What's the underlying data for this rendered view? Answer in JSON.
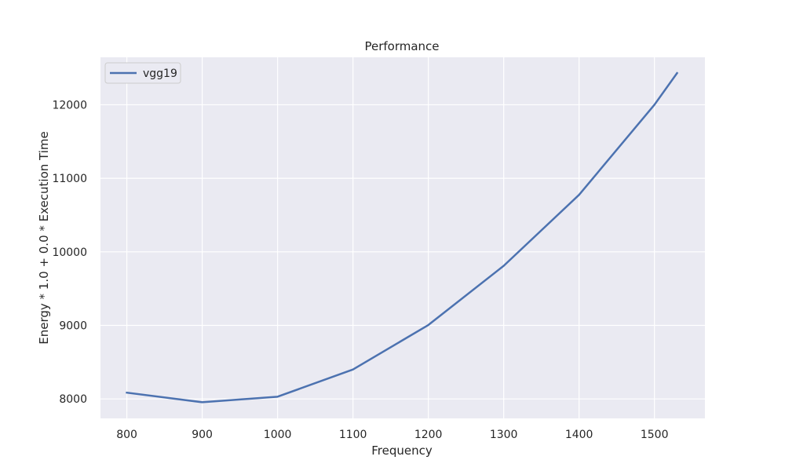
{
  "chart_data": {
    "type": "line",
    "title": "Performance",
    "xlabel": "Frequency",
    "ylabel": "Energy * 1.0 + 0.0 * Execution Time",
    "x": [
      800,
      900,
      1000,
      1100,
      1200,
      1300,
      1400,
      1500,
      1530
    ],
    "series": [
      {
        "name": "vgg19",
        "values": [
          8085,
          7955,
          8030,
          8400,
          9005,
          9810,
          10775,
          12000,
          12430
        ],
        "color": "#4c72b0"
      }
    ],
    "xlim": [
      765,
      1567
    ],
    "ylim": [
      7735,
      12645
    ],
    "xticks": [
      800,
      900,
      1000,
      1100,
      1200,
      1300,
      1400,
      1500
    ],
    "yticks": [
      8000,
      9000,
      10000,
      11000,
      12000
    ],
    "grid": true,
    "legend_position": "top-left",
    "background_color": "#eaeaf2",
    "grid_color": "#ffffff"
  }
}
